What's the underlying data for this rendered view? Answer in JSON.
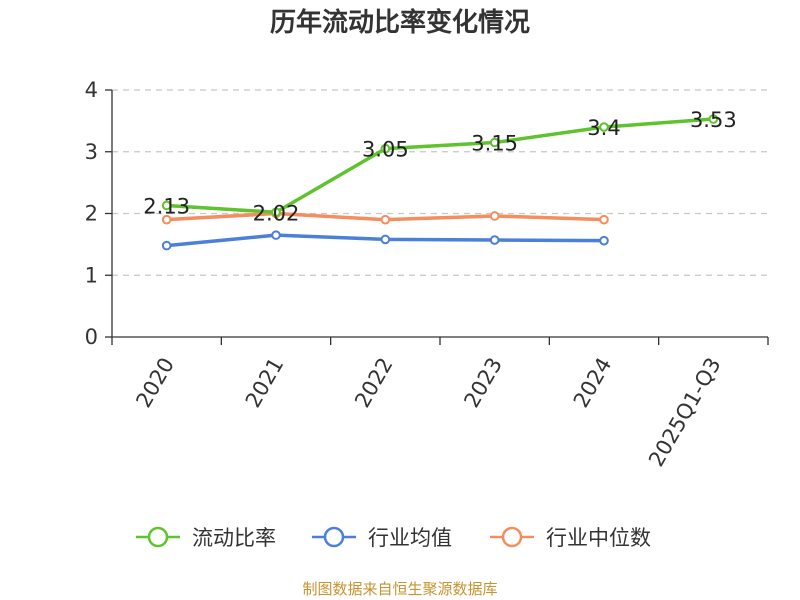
{
  "chart_data": {
    "type": "line",
    "title": "历年流动比率变化情况",
    "categories": [
      "2020",
      "2021",
      "2022",
      "2023",
      "2024",
      "2025Q1-Q3"
    ],
    "ylim": [
      0,
      4
    ],
    "yticks": [
      "0",
      "1",
      "2",
      "3",
      "4"
    ],
    "grid": true,
    "legend_position": "bottom",
    "series": [
      {
        "name": "流动比率",
        "color": "#5ec32d",
        "values": [
          2.13,
          2.02,
          3.05,
          3.15,
          3.4,
          3.53
        ],
        "labels": [
          "2.13",
          "2.02",
          "3.05",
          "3.15",
          "3.4",
          "3.53"
        ]
      },
      {
        "name": "行业均值",
        "color": "#4a80d8",
        "values": [
          1.48,
          1.65,
          1.58,
          1.57,
          1.56,
          null
        ]
      },
      {
        "name": "行业中位数",
        "color": "#f58d5f",
        "values": [
          1.9,
          2.0,
          1.9,
          1.96,
          1.9,
          null
        ]
      }
    ]
  },
  "source": "制图数据来自恒生聚源数据库"
}
